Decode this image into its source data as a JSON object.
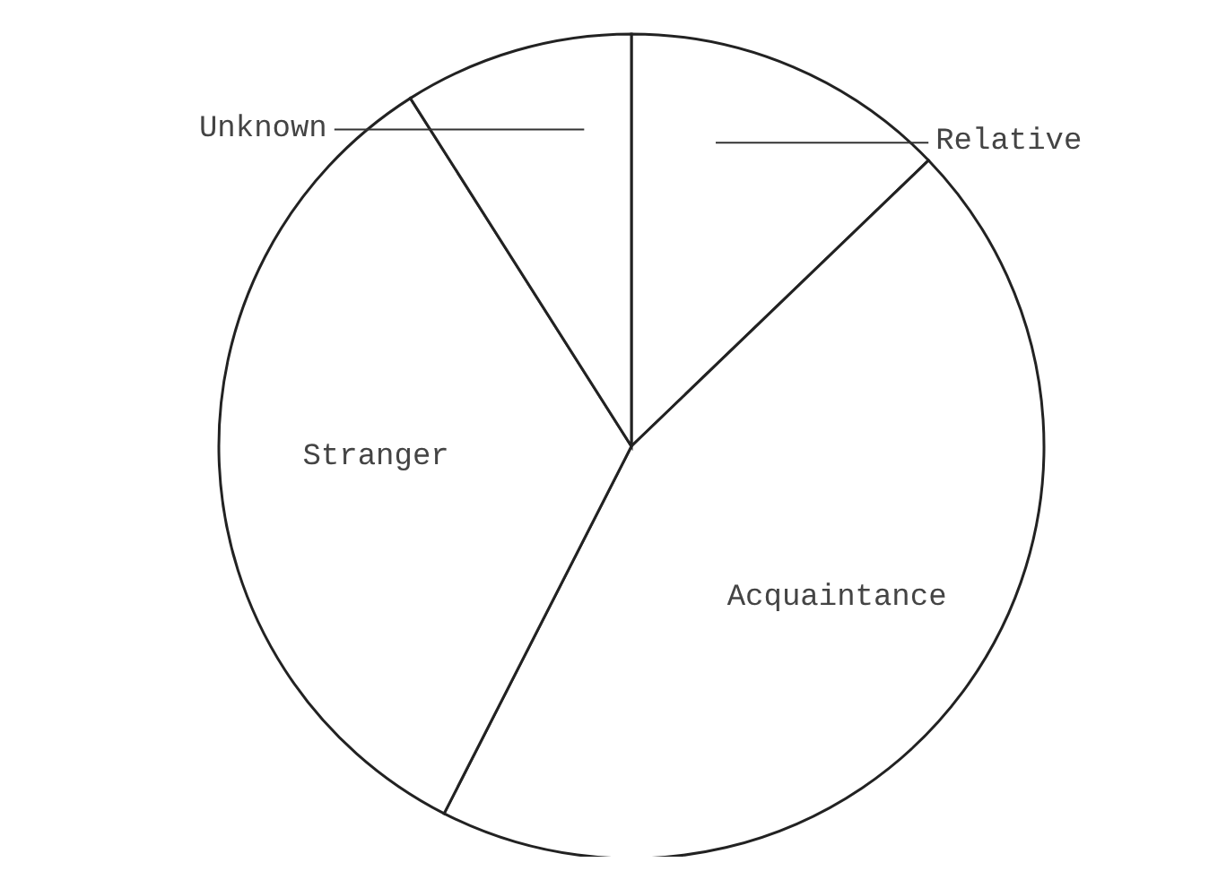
{
  "chart_data": {
    "type": "pie",
    "categories": [
      "Relative",
      "Acquaintance",
      "Stranger",
      "Unknown"
    ],
    "values": [
      12.8,
      44.7,
      33.5,
      9.0
    ],
    "colors": [
      "#ffffff",
      "#ffffff",
      "#ffffff",
      "#ffffff"
    ]
  }
}
